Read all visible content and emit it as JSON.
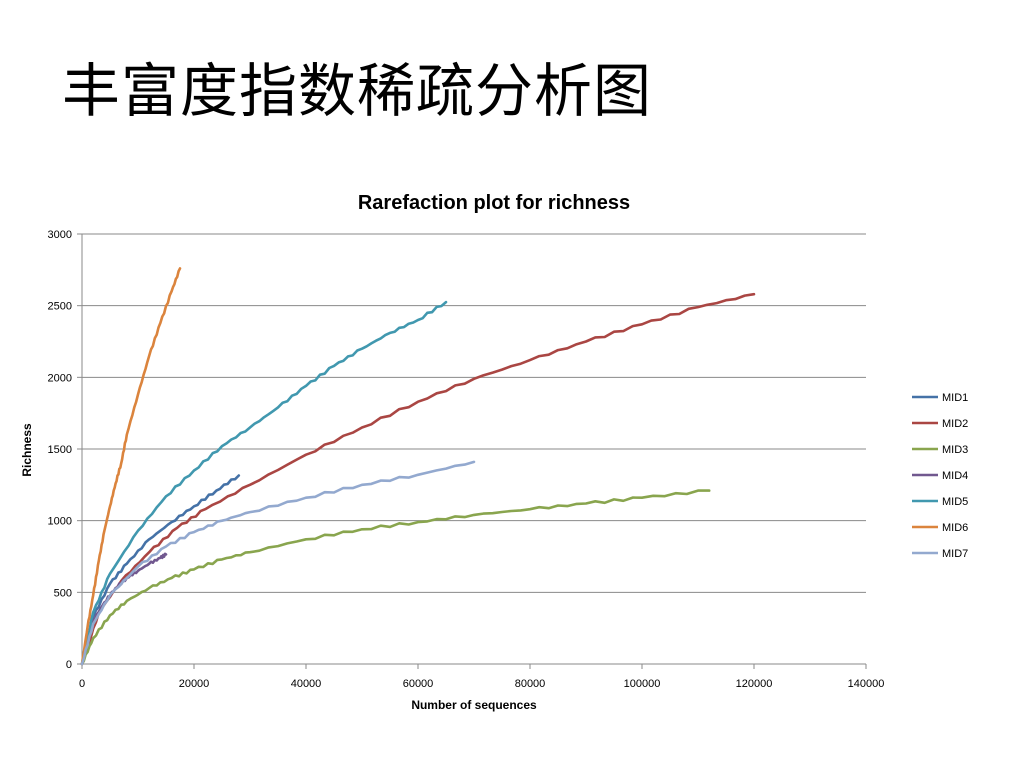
{
  "slide": {
    "title": "丰富度指数稀疏分析图"
  },
  "chart_data": {
    "type": "line",
    "title": "Rarefaction plot for richness",
    "xlabel": "Number of sequences",
    "ylabel": "Richness",
    "xlim": [
      0,
      140000
    ],
    "ylim": [
      0,
      3000
    ],
    "x_ticks": [
      0,
      20000,
      40000,
      60000,
      80000,
      100000,
      120000,
      140000
    ],
    "y_ticks": [
      0,
      500,
      1000,
      1500,
      2000,
      2500,
      3000
    ],
    "grid": "horizontal",
    "legend_position": "right",
    "series": [
      {
        "name": "MID1",
        "color": "#4572A7",
        "points": [
          [
            0,
            0
          ],
          [
            2000,
            330
          ],
          [
            5000,
            560
          ],
          [
            8000,
            700
          ],
          [
            12000,
            870
          ],
          [
            16000,
            990
          ],
          [
            20000,
            1100
          ],
          [
            24000,
            1210
          ],
          [
            28000,
            1315
          ]
        ]
      },
      {
        "name": "MID2",
        "color": "#AA4643",
        "points": [
          [
            0,
            0
          ],
          [
            3000,
            360
          ],
          [
            7000,
            580
          ],
          [
            12000,
            780
          ],
          [
            17000,
            950
          ],
          [
            22000,
            1080
          ],
          [
            30000,
            1250
          ],
          [
            40000,
            1460
          ],
          [
            50000,
            1650
          ],
          [
            60000,
            1830
          ],
          [
            70000,
            1990
          ],
          [
            80000,
            2120
          ],
          [
            90000,
            2250
          ],
          [
            100000,
            2370
          ],
          [
            110000,
            2490
          ],
          [
            120000,
            2580
          ]
        ]
      },
      {
        "name": "MID3",
        "color": "#89A54E",
        "points": [
          [
            0,
            0
          ],
          [
            2000,
            180
          ],
          [
            5000,
            340
          ],
          [
            8000,
            440
          ],
          [
            12000,
            530
          ],
          [
            16000,
            600
          ],
          [
            20000,
            660
          ],
          [
            25000,
            730
          ],
          [
            30000,
            780
          ],
          [
            40000,
            870
          ],
          [
            50000,
            940
          ],
          [
            60000,
            990
          ],
          [
            70000,
            1040
          ],
          [
            80000,
            1080
          ],
          [
            90000,
            1120
          ],
          [
            100000,
            1160
          ],
          [
            112000,
            1210
          ]
        ]
      },
      {
        "name": "MID4",
        "color": "#71588F",
        "points": [
          [
            0,
            0
          ],
          [
            2000,
            300
          ],
          [
            4000,
            430
          ],
          [
            6000,
            530
          ],
          [
            8000,
            600
          ],
          [
            10000,
            650
          ],
          [
            12000,
            700
          ],
          [
            14000,
            740
          ],
          [
            15000,
            765
          ]
        ]
      },
      {
        "name": "MID5",
        "color": "#4198AF",
        "points": [
          [
            0,
            0
          ],
          [
            2000,
            360
          ],
          [
            5000,
            630
          ],
          [
            10000,
            930
          ],
          [
            15000,
            1170
          ],
          [
            20000,
            1350
          ],
          [
            25000,
            1520
          ],
          [
            30000,
            1650
          ],
          [
            35000,
            1790
          ],
          [
            40000,
            1940
          ],
          [
            45000,
            2080
          ],
          [
            50000,
            2200
          ],
          [
            55000,
            2310
          ],
          [
            60000,
            2400
          ],
          [
            65000,
            2525
          ]
        ]
      },
      {
        "name": "MID6",
        "color": "#DB843D",
        "points": [
          [
            0,
            0
          ],
          [
            1000,
            260
          ],
          [
            2000,
            480
          ],
          [
            3000,
            720
          ],
          [
            4000,
            930
          ],
          [
            5000,
            1100
          ],
          [
            6000,
            1260
          ],
          [
            7000,
            1400
          ],
          [
            8000,
            1600
          ],
          [
            10000,
            1880
          ],
          [
            12000,
            2150
          ],
          [
            14000,
            2380
          ],
          [
            16000,
            2600
          ],
          [
            17500,
            2760
          ]
        ]
      },
      {
        "name": "MID7",
        "color": "#93A9CF",
        "points": [
          [
            0,
            0
          ],
          [
            2000,
            280
          ],
          [
            5000,
            480
          ],
          [
            10000,
            680
          ],
          [
            15000,
            820
          ],
          [
            20000,
            920
          ],
          [
            25000,
            1000
          ],
          [
            30000,
            1060
          ],
          [
            40000,
            1160
          ],
          [
            50000,
            1250
          ],
          [
            60000,
            1320
          ],
          [
            70000,
            1410
          ]
        ]
      }
    ]
  }
}
